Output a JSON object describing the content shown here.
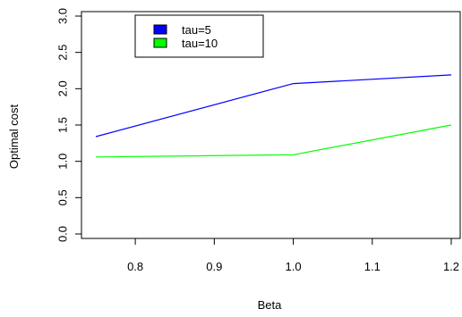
{
  "chart_data": {
    "type": "line",
    "title": "",
    "xlabel": "Beta",
    "ylabel": "Optimal cost",
    "xlim": [
      0.75,
      1.2
    ],
    "ylim": [
      0,
      3
    ],
    "xticks": [
      "0.8",
      "0.9",
      "1.0",
      "1.1",
      "1.2"
    ],
    "yticks": [
      "0.0",
      "0.5",
      "1.0",
      "1.5",
      "2.0",
      "2.5",
      "3.0"
    ],
    "x": [
      0.75,
      1.0,
      1.2
    ],
    "series": [
      {
        "name": "tau=5",
        "color": "#0000ff",
        "values": [
          1.34,
          2.07,
          2.19
        ]
      },
      {
        "name": "tau=10",
        "color": "#00ff00",
        "values": [
          1.06,
          1.09,
          1.5
        ]
      }
    ],
    "legend_position": "top-left",
    "grid": false
  }
}
